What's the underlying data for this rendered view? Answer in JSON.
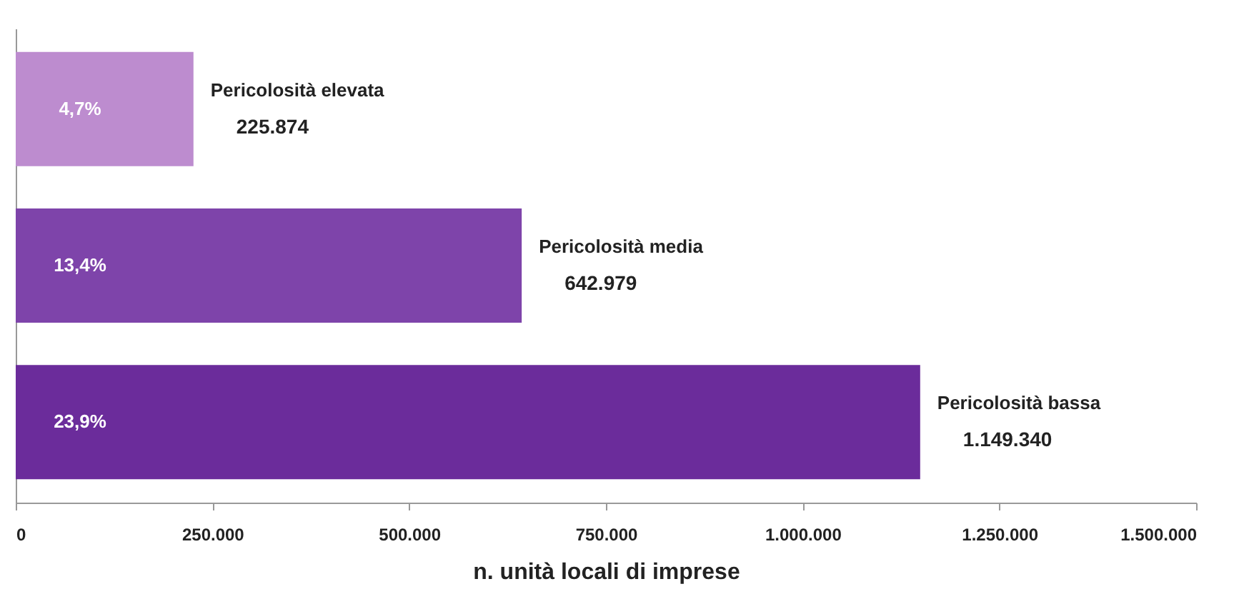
{
  "chart_data": {
    "type": "bar",
    "orientation": "horizontal",
    "xlabel": "n. unità locali di imprese",
    "categories": [
      "Pericolosità elevata",
      "Pericolosità media",
      "Pericolosità bassa"
    ],
    "values": [
      225874,
      642979,
      1149340
    ],
    "colors": [
      "#bd8ccf",
      "#7e44aa",
      "#6b2c9b"
    ],
    "value_labels": [
      "225.874",
      "642.979",
      "1.149.340"
    ],
    "annotations": [
      "4,7%",
      "13,4%",
      "23,9%"
    ],
    "xlim": [
      0,
      1500000
    ],
    "xticks": [
      0,
      {
        "value": 250000,
        "label": "250.000"
      },
      {
        "value": 500000,
        "label": "500.000"
      },
      {
        "value": 750000,
        "label": "750.000"
      },
      {
        "value": 1000000,
        "label": "1.000.000"
      },
      {
        "value": 1250000,
        "label": "1.250.000"
      },
      {
        "value": 1500000,
        "label": "1.500.000"
      }
    ],
    "tick_labels": "x",
    "grid": false
  }
}
